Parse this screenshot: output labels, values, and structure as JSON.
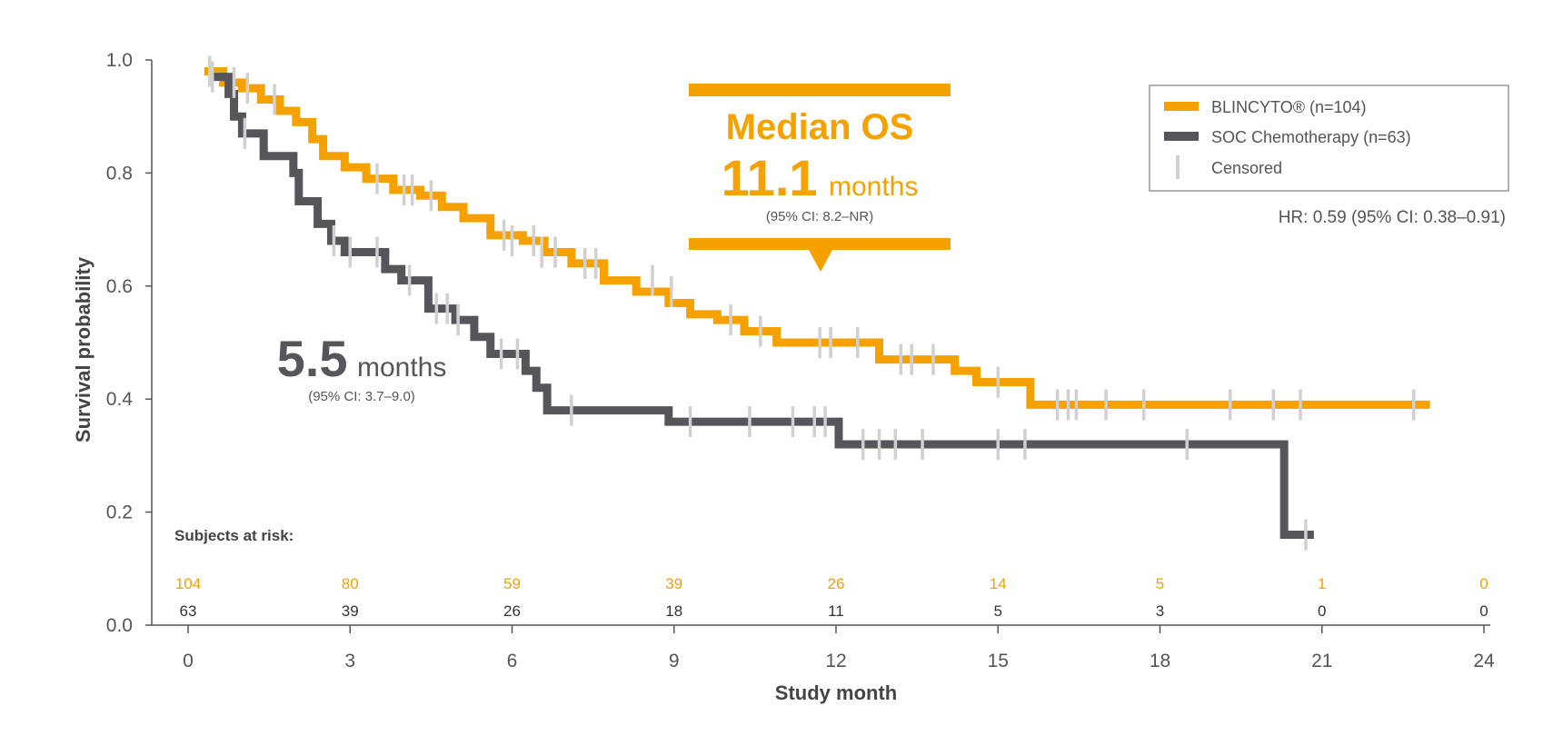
{
  "chart_data": {
    "type": "line",
    "subtype": "kaplan-meier",
    "xlabel": "Study month",
    "ylabel": "Survival probability",
    "xlim": [
      0,
      24
    ],
    "ylim": [
      0.0,
      1.0
    ],
    "x_ticks": [
      "0",
      "3",
      "6",
      "9",
      "12",
      "15",
      "18",
      "21",
      "24"
    ],
    "x_tick_values": [
      0,
      3,
      6,
      9,
      12,
      15,
      18,
      21,
      24
    ],
    "y_ticks": [
      "1.0",
      "0.8",
      "0.6",
      "0.4",
      "0.2",
      "0.0"
    ],
    "y_tick_values": [
      1.0,
      0.8,
      0.6,
      0.4,
      0.2,
      0.0
    ],
    "grid": false,
    "legend": {
      "placement": "top-right",
      "items": [
        {
          "label": "BLINCYTO® (n=104)",
          "marker": "line",
          "color": "#f5a100"
        },
        {
          "label": "SOC Chemotherapy (n=63)",
          "marker": "line",
          "color": "#55555a"
        },
        {
          "label": "Censored",
          "marker": "tick",
          "color": "#d0d0d0"
        }
      ]
    },
    "hazard_ratio": "HR: 0.59 (95% CI: 0.38–0.91)",
    "series": [
      {
        "name": "BLINCYTO® (n=104)",
        "color": "#f5a100",
        "steps": [
          [
            0.3,
            0.98
          ],
          [
            0.65,
            0.96
          ],
          [
            1.0,
            0.95
          ],
          [
            1.35,
            0.93
          ],
          [
            1.7,
            0.91
          ],
          [
            2.0,
            0.89
          ],
          [
            2.3,
            0.86
          ],
          [
            2.5,
            0.83
          ],
          [
            2.9,
            0.81
          ],
          [
            3.3,
            0.79
          ],
          [
            3.8,
            0.77
          ],
          [
            4.3,
            0.76
          ],
          [
            4.7,
            0.74
          ],
          [
            5.1,
            0.72
          ],
          [
            5.6,
            0.69
          ],
          [
            6.2,
            0.68
          ],
          [
            6.6,
            0.66
          ],
          [
            7.1,
            0.64
          ],
          [
            7.7,
            0.61
          ],
          [
            8.3,
            0.59
          ],
          [
            8.9,
            0.57
          ],
          [
            9.3,
            0.55
          ],
          [
            9.8,
            0.54
          ],
          [
            10.3,
            0.52
          ],
          [
            10.9,
            0.5
          ],
          [
            12.8,
            0.47
          ],
          [
            14.2,
            0.45
          ],
          [
            14.6,
            0.43
          ],
          [
            15.6,
            0.39
          ],
          [
            23.0,
            0.39
          ]
        ],
        "censored": [
          [
            0.4,
            0.98
          ],
          [
            0.85,
            0.96
          ],
          [
            1.1,
            0.95
          ],
          [
            1.6,
            0.93
          ],
          [
            3.5,
            0.79
          ],
          [
            4.0,
            0.77
          ],
          [
            4.15,
            0.77
          ],
          [
            4.5,
            0.76
          ],
          [
            5.85,
            0.69
          ],
          [
            6.0,
            0.68
          ],
          [
            6.4,
            0.68
          ],
          [
            6.55,
            0.66
          ],
          [
            6.8,
            0.66
          ],
          [
            7.35,
            0.64
          ],
          [
            7.55,
            0.64
          ],
          [
            8.6,
            0.61
          ],
          [
            8.95,
            0.59
          ],
          [
            10.05,
            0.54
          ],
          [
            10.6,
            0.52
          ],
          [
            11.7,
            0.5
          ],
          [
            11.9,
            0.5
          ],
          [
            12.4,
            0.5
          ],
          [
            13.2,
            0.47
          ],
          [
            13.4,
            0.47
          ],
          [
            13.8,
            0.47
          ],
          [
            15.0,
            0.43
          ],
          [
            16.1,
            0.39
          ],
          [
            16.3,
            0.39
          ],
          [
            16.45,
            0.39
          ],
          [
            17.0,
            0.39
          ],
          [
            17.7,
            0.39
          ],
          [
            19.3,
            0.39
          ],
          [
            20.1,
            0.39
          ],
          [
            20.6,
            0.39
          ],
          [
            22.7,
            0.39
          ]
        ]
      },
      {
        "name": "SOC Chemotherapy (n=63)",
        "color": "#55555a",
        "steps": [
          [
            0.4,
            0.97
          ],
          [
            0.75,
            0.94
          ],
          [
            0.85,
            0.9
          ],
          [
            1.0,
            0.87
          ],
          [
            1.4,
            0.83
          ],
          [
            1.95,
            0.8
          ],
          [
            2.05,
            0.75
          ],
          [
            2.4,
            0.71
          ],
          [
            2.65,
            0.68
          ],
          [
            2.9,
            0.66
          ],
          [
            3.65,
            0.63
          ],
          [
            3.95,
            0.61
          ],
          [
            4.45,
            0.56
          ],
          [
            4.95,
            0.54
          ],
          [
            5.3,
            0.51
          ],
          [
            5.6,
            0.48
          ],
          [
            6.25,
            0.45
          ],
          [
            6.45,
            0.42
          ],
          [
            6.65,
            0.38
          ],
          [
            8.9,
            0.36
          ],
          [
            12.05,
            0.32
          ],
          [
            20.3,
            0.16
          ],
          [
            20.85,
            0.16
          ]
        ],
        "censored": [
          [
            0.45,
            0.97
          ],
          [
            1.05,
            0.87
          ],
          [
            2.7,
            0.68
          ],
          [
            3.0,
            0.66
          ],
          [
            3.5,
            0.66
          ],
          [
            4.1,
            0.61
          ],
          [
            4.6,
            0.56
          ],
          [
            4.8,
            0.56
          ],
          [
            5.0,
            0.54
          ],
          [
            5.8,
            0.48
          ],
          [
            6.1,
            0.48
          ],
          [
            7.1,
            0.38
          ],
          [
            9.3,
            0.36
          ],
          [
            10.4,
            0.36
          ],
          [
            11.2,
            0.36
          ],
          [
            11.6,
            0.36
          ],
          [
            11.8,
            0.36
          ],
          [
            12.5,
            0.32
          ],
          [
            12.8,
            0.32
          ],
          [
            13.1,
            0.32
          ],
          [
            13.6,
            0.32
          ],
          [
            15.0,
            0.32
          ],
          [
            15.5,
            0.32
          ],
          [
            18.5,
            0.32
          ],
          [
            20.7,
            0.16
          ]
        ]
      }
    ],
    "annotations": {
      "blincyto_median": {
        "title": "Median OS",
        "value": "11.1",
        "unit": "months",
        "ci": "(95% CI: 8.2–NR)"
      },
      "soc_median": {
        "value": "5.5",
        "unit": "months",
        "ci": "(95% CI: 3.7–9.0)"
      }
    },
    "at_risk": {
      "title": "Subjects at risk:",
      "timepoints": [
        0,
        3,
        6,
        9,
        12,
        15,
        18,
        21,
        24
      ],
      "rows": [
        {
          "series": "BLINCYTO® (n=104)",
          "color": "#f5a100",
          "values": [
            "104",
            "80",
            "59",
            "39",
            "26",
            "14",
            "5",
            "1",
            "0"
          ]
        },
        {
          "series": "SOC Chemotherapy (n=63)",
          "color": "#333333",
          "values": [
            "63",
            "39",
            "26",
            "18",
            "11",
            "5",
            "3",
            "0",
            "0"
          ]
        }
      ]
    }
  }
}
